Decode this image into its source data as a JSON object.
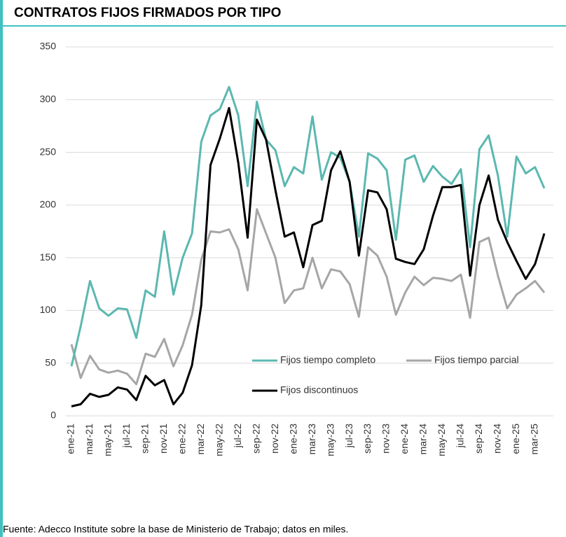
{
  "chart_data": {
    "type": "line",
    "title": "CONTRATOS FIJOS FIRMADOS POR TIPO",
    "source": "Fuente: Adecco Institute sobre la base de Ministerio de Trabajo; datos en miles.",
    "categories": [
      "ene-21",
      null,
      "mar-21",
      null,
      "may-21",
      null,
      "jul-21",
      null,
      "sep-21",
      null,
      "nov-21",
      null,
      "ene-22",
      null,
      "mar-22",
      null,
      "may-22",
      null,
      "jul-22",
      null,
      "sep-22",
      null,
      "nov-22",
      null,
      "ene-23",
      null,
      "mar-23",
      null,
      "may-23",
      null,
      "jul-23",
      null,
      "sep-23",
      null,
      "nov-23",
      null,
      "ene-24",
      null,
      "mar-24",
      null,
      "may-24",
      null,
      "jul-24",
      null,
      "sep-24",
      null,
      "nov-24",
      null,
      "ene-25",
      null,
      "mar-25",
      null
    ],
    "series": [
      {
        "name": "Fijos tiempo completo",
        "color": "#5bb8b0",
        "values": [
          47,
          85,
          128,
          102,
          95,
          102,
          101,
          74,
          119,
          113,
          175,
          115,
          150,
          173,
          260,
          285,
          291,
          312,
          285,
          218,
          298,
          262,
          252,
          218,
          236,
          230,
          284,
          224,
          250,
          245,
          222,
          170,
          249,
          244,
          233,
          167,
          243,
          247,
          222,
          237,
          227,
          220,
          234,
          160,
          253,
          266,
          228,
          170,
          246,
          230,
          236,
          216
        ]
      },
      {
        "name": "Fijos tiempo parcial",
        "color": "#a6a6a6",
        "values": [
          68,
          36,
          57,
          44,
          41,
          43,
          40,
          30,
          59,
          56,
          73,
          47,
          67,
          96,
          148,
          175,
          174,
          177,
          158,
          119,
          196,
          173,
          150,
          107,
          119,
          121,
          150,
          121,
          139,
          137,
          125,
          94,
          160,
          152,
          132,
          96,
          117,
          132,
          124,
          131,
          130,
          128,
          134,
          93,
          165,
          169,
          133,
          102,
          115,
          121,
          128,
          117
        ]
      },
      {
        "name": "Fijos discontinuos",
        "color": "#000000",
        "values": [
          9,
          11,
          21,
          18,
          20,
          27,
          25,
          15,
          38,
          29,
          34,
          11,
          22,
          48,
          105,
          238,
          263,
          292,
          240,
          169,
          281,
          262,
          214,
          170,
          174,
          141,
          181,
          185,
          233,
          251,
          222,
          152,
          214,
          212,
          196,
          149,
          146,
          144,
          158,
          190,
          217,
          217,
          219,
          133,
          200,
          228,
          186,
          165,
          147,
          130,
          144,
          173
        ]
      }
    ],
    "ylim": [
      0,
      350
    ],
    "yticks": [
      0,
      50,
      100,
      150,
      200,
      250,
      300,
      350
    ],
    "grid": true
  }
}
